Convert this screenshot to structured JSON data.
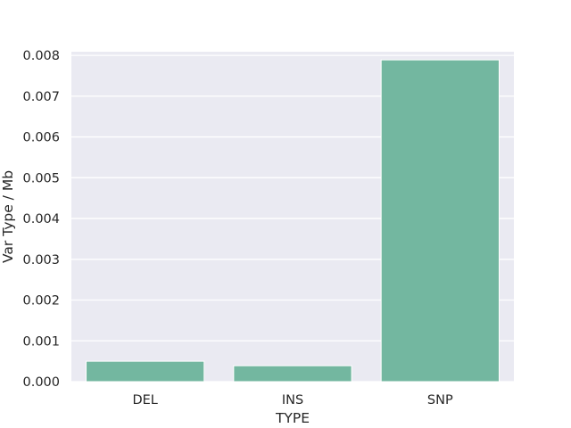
{
  "chart_data": {
    "type": "bar",
    "categories": [
      "DEL",
      "INS",
      "SNP"
    ],
    "values": [
      0.0005,
      0.00039,
      0.00789
    ],
    "xlabel": "TYPE",
    "ylabel": "Var Type / Mb",
    "ylim": [
      0,
      0.00809
    ],
    "yticks": [
      "0.000",
      "0.001",
      "0.002",
      "0.003",
      "0.004",
      "0.005",
      "0.006",
      "0.007",
      "0.008"
    ],
    "grid": true,
    "colors": {
      "plot_background": "#eaeaf2",
      "gridline": "#ffffff",
      "bar": "#73b7a0"
    }
  }
}
